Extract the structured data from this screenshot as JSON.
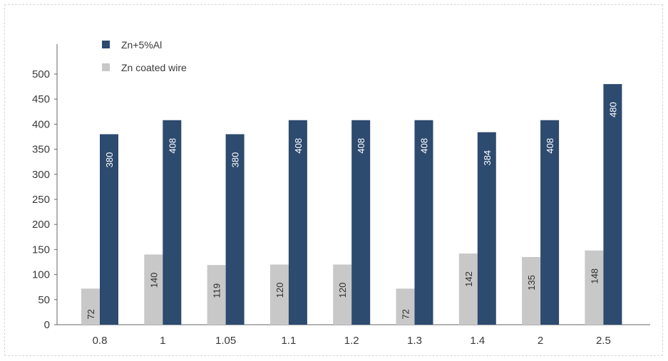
{
  "chart_data": {
    "type": "bar",
    "categories": [
      "0.8",
      "1",
      "1.05",
      "1.1",
      "1.2",
      "1.3",
      "1.4",
      "2",
      "2.5"
    ],
    "series": [
      {
        "name": "Zn coated wire",
        "values": [
          72,
          140,
          119,
          120,
          120,
          72,
          142,
          135,
          148
        ],
        "color": "#c8c8c8",
        "label_color": "#2e2e2e"
      },
      {
        "name": "Zn+5%Al",
        "values": [
          380,
          408,
          380,
          408,
          408,
          408,
          384,
          408,
          480
        ],
        "color": "#2d4a6f",
        "label_color": "#ffffff"
      }
    ],
    "title": "",
    "xlabel": "",
    "ylabel": "",
    "ylim": [
      0,
      500
    ],
    "yticks": [
      0,
      50,
      100,
      150,
      200,
      250,
      300,
      350,
      400,
      450,
      500
    ],
    "grid": false,
    "legend": {
      "placement": "top-left",
      "order": [
        "Zn+5%Al",
        "Zn coated wire"
      ]
    }
  }
}
